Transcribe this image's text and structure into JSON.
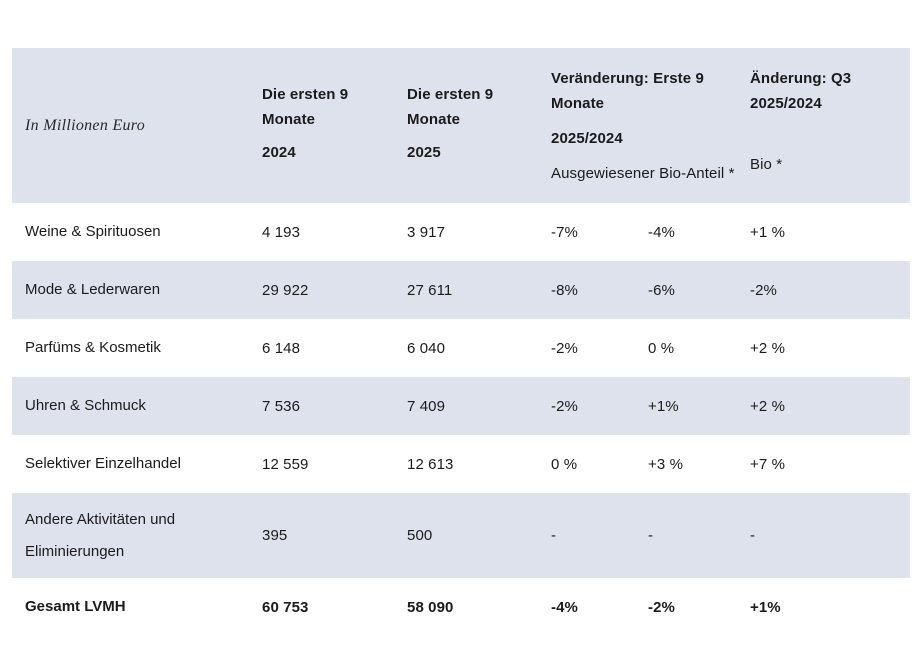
{
  "table": {
    "unit_label": "In Millionen Euro",
    "colors": {
      "band_background": "#dee2ec",
      "text": "#1b1b1b"
    },
    "headers": {
      "first9_2024": {
        "period": "Die ersten 9 Monate",
        "year": "2024"
      },
      "first9_2025": {
        "period": "Die ersten 9 Monate",
        "year": "2025"
      },
      "change_9m": {
        "title": "Veränderung: Erste 9 Monate",
        "period": "2025/2024",
        "subnote": "Ausgewiesener Bio-Anteil *"
      },
      "change_q3": {
        "title": "Änderung: Q3 2025/2024",
        "subnote": "Bio *"
      }
    },
    "rows": [
      {
        "label": "Weine & Spirituosen",
        "m2024": "4 193",
        "m2025": "3 917",
        "chg_reported": "-7%",
        "chg_organic": "-4%",
        "q3_organic": "+1 %"
      },
      {
        "label": "Mode & Lederwaren",
        "m2024": "29 922",
        "m2025": "27 611",
        "chg_reported": "-8%",
        "chg_organic": "-6%",
        "q3_organic": "-2%"
      },
      {
        "label": "Parfüms & Kosmetik",
        "m2024": "6 148",
        "m2025": "6 040",
        "chg_reported": "-2%",
        "chg_organic": "0 %",
        "q3_organic": "+2 %"
      },
      {
        "label": "Uhren & Schmuck",
        "m2024": "7 536",
        "m2025": "7 409",
        "chg_reported": "-2%",
        "chg_organic": "+1%",
        "q3_organic": "+2 %"
      },
      {
        "label": "Selektiver Einzelhandel",
        "m2024": "12 559",
        "m2025": "12 613",
        "chg_reported": "0 %",
        "chg_organic": "+3 %",
        "q3_organic": "+7 %"
      },
      {
        "label": "Andere Aktivitäten und Eliminierungen",
        "m2024": "395",
        "m2025": "500",
        "chg_reported": "-",
        "chg_organic": "-",
        "q3_organic": "-"
      },
      {
        "label": "Gesamt LVMH",
        "m2024": "60 753",
        "m2025": "58 090",
        "chg_reported": "-4%",
        "chg_organic": "-2%",
        "q3_organic": "+1%"
      }
    ]
  }
}
